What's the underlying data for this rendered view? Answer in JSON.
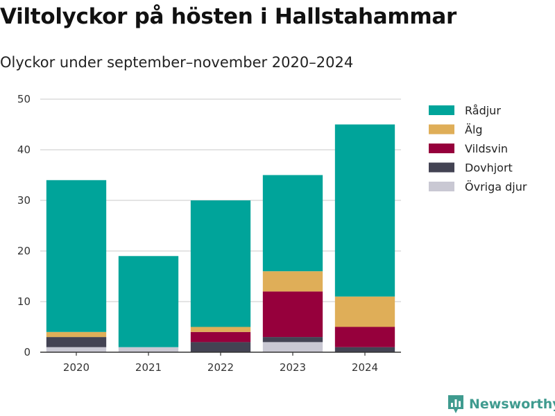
{
  "brand": {
    "name": "Newsworthy",
    "icon": "bar-chart-badge-icon",
    "color": "#3f9b8f"
  },
  "chart_data": {
    "type": "bar",
    "stacked": true,
    "title": "Viltolyckor på hösten i Hallstahammar",
    "subtitle": "Olyckor under september–november 2020–2024",
    "xlabel": "",
    "ylabel": "",
    "categories": [
      "2020",
      "2021",
      "2022",
      "2023",
      "2024"
    ],
    "ylim": [
      0,
      50
    ],
    "yticks": [
      "0",
      "10",
      "20",
      "30",
      "40",
      "50"
    ],
    "grid": true,
    "legend_position": "right",
    "series": [
      {
        "name": "Övriga djur",
        "color": "#c9c8d3",
        "values": [
          1,
          1,
          0,
          2,
          0
        ]
      },
      {
        "name": "Dovhjort",
        "color": "#434353",
        "values": [
          2,
          0,
          2,
          1,
          1
        ]
      },
      {
        "name": "Vildsvin",
        "color": "#96003c",
        "values": [
          0,
          0,
          2,
          9,
          4
        ]
      },
      {
        "name": "Älg",
        "color": "#dfae58",
        "values": [
          1,
          0,
          1,
          4,
          6
        ]
      },
      {
        "name": "Rådjur",
        "color": "#00a49a",
        "values": [
          30,
          18,
          25,
          19,
          34
        ]
      }
    ],
    "legend_order": [
      "Rådjur",
      "Älg",
      "Vildsvin",
      "Dovhjort",
      "Övriga djur"
    ]
  }
}
